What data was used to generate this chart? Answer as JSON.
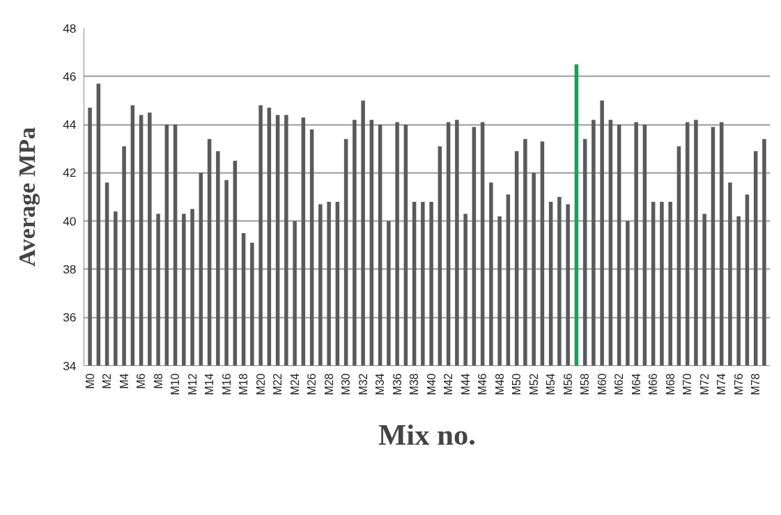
{
  "chart_data": {
    "type": "bar",
    "xlabel": "Mix no.",
    "ylabel": "Average MPa",
    "categories": [
      "M0",
      null,
      "M2",
      null,
      "M4",
      null,
      "M6",
      null,
      "M8",
      null,
      "M10",
      null,
      "M12",
      null,
      "M14",
      null,
      "M16",
      null,
      "M18",
      null,
      "M20",
      null,
      "M22",
      null,
      "M24",
      null,
      "M26",
      null,
      "M28",
      null,
      "M30",
      null,
      "M32",
      null,
      "M34",
      null,
      "M36",
      null,
      "M38",
      null,
      "M40",
      null,
      "M42",
      null,
      "M44",
      null,
      "M46",
      null,
      "M48",
      null,
      "M50",
      null,
      "M52",
      null,
      "M54",
      null,
      "M56",
      null,
      "M58",
      null,
      "M60",
      null,
      "M62",
      null,
      "M64",
      null,
      "M66",
      null,
      "M68",
      null,
      "M70",
      null,
      "M72",
      null,
      "M74",
      null,
      "M76",
      null,
      "M78",
      null
    ],
    "values": [
      44.7,
      45.7,
      41.6,
      40.4,
      43.1,
      44.8,
      44.4,
      44.5,
      40.3,
      44.0,
      44.0,
      40.3,
      40.5,
      42.0,
      43.4,
      42.9,
      41.7,
      42.5,
      39.5,
      39.1,
      44.8,
      44.7,
      44.4,
      44.4,
      40.0,
      44.3,
      43.8,
      40.7,
      40.8,
      40.8,
      43.4,
      44.2,
      45.0,
      44.2,
      44.0,
      40.0,
      44.1,
      44.0,
      40.8,
      40.8,
      40.8,
      43.1,
      44.1,
      44.2,
      40.3,
      43.9,
      44.1,
      41.6,
      40.2,
      41.1,
      42.9,
      43.4,
      42.0,
      43.3,
      40.8,
      41.0,
      40.7,
      46.5,
      43.4,
      44.2,
      45.0,
      44.2,
      44.0,
      40.0,
      44.1,
      44.0,
      40.8,
      40.8,
      40.8,
      43.1,
      44.1,
      44.2,
      40.3,
      43.9,
      44.1,
      41.6,
      40.2,
      41.1,
      42.9,
      43.4
    ],
    "colors": [
      "#5a5a5a",
      "#5a5a5a",
      "#5a5a5a",
      "#5a5a5a",
      "#5a5a5a",
      "#5a5a5a",
      "#5a5a5a",
      "#5a5a5a",
      "#5a5a5a",
      "#5a5a5a",
      "#5a5a5a",
      "#5a5a5a",
      "#5a5a5a",
      "#5a5a5a",
      "#5a5a5a",
      "#5a5a5a",
      "#5a5a5a",
      "#5a5a5a",
      "#5a5a5a",
      "#5a5a5a",
      "#5a5a5a",
      "#5a5a5a",
      "#5a5a5a",
      "#5a5a5a",
      "#5a5a5a",
      "#5a5a5a",
      "#5a5a5a",
      "#5a5a5a",
      "#5a5a5a",
      "#5a5a5a",
      "#5a5a5a",
      "#5a5a5a",
      "#5a5a5a",
      "#5a5a5a",
      "#5a5a5a",
      "#5a5a5a",
      "#5a5a5a",
      "#5a5a5a",
      "#5a5a5a",
      "#5a5a5a",
      "#5a5a5a",
      "#5a5a5a",
      "#5a5a5a",
      "#5a5a5a",
      "#5a5a5a",
      "#5a5a5a",
      "#5a5a5a",
      "#5a5a5a",
      "#5a5a5a",
      "#5a5a5a",
      "#5a5a5a",
      "#5a5a5a",
      "#5a5a5a",
      "#5a5a5a",
      "#5a5a5a",
      "#5a5a5a",
      "#5a5a5a",
      "#17a05a",
      "#5a5a5a",
      "#5a5a5a",
      "#5a5a5a",
      "#5a5a5a",
      "#5a5a5a",
      "#5a5a5a",
      "#5a5a5a",
      "#5a5a5a",
      "#5a5a5a",
      "#5a5a5a",
      "#5a5a5a",
      "#5a5a5a",
      "#5a5a5a",
      "#5a5a5a",
      "#5a5a5a",
      "#5a5a5a",
      "#5a5a5a",
      "#5a5a5a",
      "#5a5a5a",
      "#5a5a5a",
      "#5a5a5a",
      "#5a5a5a"
    ],
    "ylim": [
      34,
      48
    ],
    "yticks": [
      34,
      36,
      38,
      40,
      42,
      44,
      46,
      48
    ],
    "grid": "y"
  }
}
